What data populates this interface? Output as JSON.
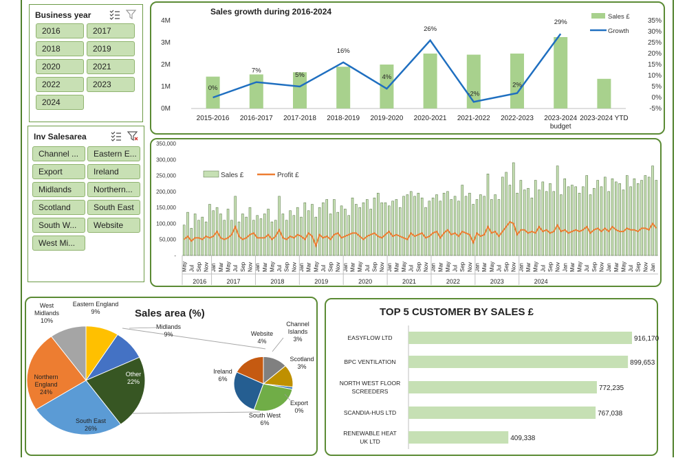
{
  "slicers": {
    "business_year": {
      "title": "Business year",
      "items": [
        "2016",
        "2017",
        "2018",
        "2019",
        "2020",
        "2021",
        "2022",
        "2023",
        "2024"
      ]
    },
    "inv_salesarea": {
      "title": "Inv Salesarea",
      "items": [
        "Channel ...",
        "Eastern E...",
        "Export",
        "Ireland",
        "Midlands",
        "Northern...",
        "Scotland",
        "South East",
        "South W...",
        "Website",
        "West Mi..."
      ]
    }
  },
  "colors": {
    "green_bar": "#a8d18d",
    "blue_line": "#1f6fc0",
    "orange_line": "#ed7d31",
    "border": "#5a8a33"
  },
  "chart_data": [
    {
      "type": "bar",
      "title": "Sales growth during 2016-2024",
      "categories": [
        "2015-2016",
        "2016-2017",
        "2017-2018",
        "2018-2019",
        "2019-2020",
        "2020-2021",
        "2021-2022",
        "2022-2023",
        "2023-2024",
        "2023-2024 YTD"
      ],
      "category_sublabels": [
        "",
        "",
        "",
        "",
        "",
        "",
        "",
        "",
        "budget",
        ""
      ],
      "series": [
        {
          "name": "Sales £",
          "type": "bar",
          "axis": "left",
          "values": [
            1.45,
            1.55,
            1.65,
            1.9,
            2.0,
            2.5,
            2.45,
            2.5,
            3.25,
            1.35
          ]
        },
        {
          "name": "Growth",
          "type": "line",
          "axis": "right",
          "values": [
            0,
            7,
            5,
            16,
            4,
            26,
            -2,
            2,
            29,
            null
          ],
          "labels": [
            "0%",
            "7%",
            "5%",
            "16%",
            "4%",
            "26%",
            "-2%",
            "2%",
            "29%",
            ""
          ]
        }
      ],
      "left_ticks": [
        "0M",
        "1M",
        "2M",
        "3M",
        "4M"
      ],
      "right_ticks": [
        "-5%",
        "0%",
        "5%",
        "10%",
        "15%",
        "20%",
        "25%",
        "30%",
        "35%"
      ],
      "ylim_left": [
        0,
        4
      ],
      "ylim_right": [
        -5,
        35
      ],
      "legend_position": "top-right"
    },
    {
      "type": "bar",
      "title": "",
      "series": [
        {
          "name": "Sales £",
          "type": "bar"
        },
        {
          "name": "Profit £",
          "type": "line"
        }
      ],
      "y_ticks": [
        "-",
        "50,000",
        "100,000",
        "150,000",
        "200,000",
        "250,000",
        "300,000",
        "350,000"
      ],
      "ylim": [
        0,
        350000
      ],
      "month_labels": [
        "May",
        "Jul",
        "Sep",
        "Nov",
        "Jan",
        "Mar"
      ],
      "years": [
        "2016",
        "2017",
        "2018",
        "2019",
        "2020",
        "2021",
        "2022",
        "2023",
        "2024"
      ],
      "sales": [
        95000,
        135000,
        85000,
        130000,
        110000,
        120000,
        105000,
        160000,
        140000,
        150000,
        130000,
        110000,
        145000,
        110000,
        185000,
        105000,
        130000,
        120000,
        150000,
        110000,
        125000,
        115000,
        130000,
        145000,
        105000,
        110000,
        185000,
        130000,
        110000,
        140000,
        125000,
        150000,
        120000,
        165000,
        140000,
        160000,
        120000,
        150000,
        165000,
        175000,
        130000,
        175000,
        135000,
        155000,
        145000,
        125000,
        180000,
        160000,
        150000,
        165000,
        175000,
        145000,
        180000,
        195000,
        165000,
        165000,
        155000,
        170000,
        175000,
        150000,
        185000,
        190000,
        200000,
        185000,
        195000,
        180000,
        150000,
        170000,
        180000,
        190000,
        170000,
        195000,
        200000,
        175000,
        185000,
        170000,
        220000,
        185000,
        195000,
        160000,
        175000,
        190000,
        185000,
        255000,
        175000,
        190000,
        175000,
        245000,
        260000,
        220000,
        290000,
        195000,
        235000,
        205000,
        210000,
        180000,
        235000,
        205000,
        230000,
        200000,
        225000,
        200000,
        280000,
        190000,
        240000,
        215000,
        220000,
        215000,
        195000,
        215000,
        250000,
        190000,
        210000,
        235000,
        215000,
        245000,
        200000,
        240000,
        230000,
        225000,
        205000,
        250000,
        215000,
        240000,
        225000,
        235000,
        250000,
        245000,
        280000,
        235000
      ],
      "profit": [
        50000,
        60000,
        45000,
        55000,
        55000,
        50000,
        60000,
        55000,
        60000,
        75000,
        55000,
        50000,
        55000,
        65000,
        90000,
        60000,
        50000,
        55000,
        65000,
        70000,
        55000,
        55000,
        55000,
        65000,
        50000,
        60000,
        80000,
        55000,
        50000,
        60000,
        55000,
        65000,
        60000,
        50000,
        70000,
        60000,
        30000,
        65000,
        55000,
        60000,
        50000,
        65000,
        70000,
        55000,
        60000,
        65000,
        70000,
        70000,
        60000,
        50000,
        60000,
        65000,
        70000,
        60000,
        55000,
        65000,
        75000,
        60000,
        65000,
        60000,
        55000,
        50000,
        70000,
        60000,
        65000,
        70000,
        55000,
        60000,
        70000,
        75000,
        55000,
        70000,
        80000,
        65000,
        70000,
        60000,
        75000,
        70000,
        65000,
        40000,
        70000,
        60000,
        65000,
        90000,
        70000,
        75000,
        60000,
        75000,
        90000,
        105000,
        100000,
        65000,
        80000,
        80000,
        70000,
        75000,
        70000,
        90000,
        75000,
        80000,
        70000,
        75000,
        95000,
        75000,
        80000,
        70000,
        75000,
        80000,
        75000,
        80000,
        90000,
        70000,
        80000,
        85000,
        75000,
        85000,
        75000,
        90000,
        80000,
        75000,
        75000,
        85000,
        80000,
        80000,
        75000,
        85000,
        85000,
        80000,
        100000,
        85000
      ],
      "legend_position": "top-left"
    },
    {
      "type": "pie",
      "title": "Sales area (%)",
      "main": [
        {
          "label": "West Midlands",
          "value": 10,
          "display": "10%",
          "color": "#a5a5a5"
        },
        {
          "label": "Eastern England",
          "value": 9,
          "display": "9%",
          "color": "#ffc000"
        },
        {
          "label": "Midlands",
          "value": 9,
          "display": "9%",
          "color": "#4472c4"
        },
        {
          "label": "Other",
          "value": 22,
          "display": "22%",
          "color": "#375623"
        },
        {
          "label": "South East",
          "value": 26,
          "display": "26%",
          "color": "#5b9bd5"
        },
        {
          "label": "Northern England",
          "value": 24,
          "display": "24%",
          "color": "#ed7d31"
        }
      ],
      "secondary": [
        {
          "label": "Website",
          "value": 4,
          "display": "4%",
          "color": "#c55a11"
        },
        {
          "label": "Channel Islands",
          "value": 3,
          "display": "3%",
          "color": "#808080"
        },
        {
          "label": "Scotland",
          "value": 3,
          "display": "3%",
          "color": "#bf9000"
        },
        {
          "label": "Export",
          "value": 0.3,
          "display": "0%",
          "color": "#2e75b6"
        },
        {
          "label": "South West",
          "value": 6,
          "display": "6%",
          "color": "#70ad47"
        },
        {
          "label": "Ireland",
          "value": 6,
          "display": "6%",
          "color": "#255e91"
        }
      ]
    },
    {
      "type": "bar",
      "orientation": "horizontal",
      "title": "TOP 5 CUSTOMER BY SALES £",
      "categories": [
        "EASYFLOW LTD",
        "BPC VENTILATION",
        "NORTH WEST FLOOR SCREEDERS",
        "SCANDIA-HUS LTD",
        "RENEWABLE HEAT UK LTD"
      ],
      "values": [
        916170,
        899653,
        772235,
        767038,
        409338
      ],
      "value_labels": [
        "916,170",
        "899,653",
        "772,235",
        "767,038",
        "409,338"
      ]
    }
  ]
}
